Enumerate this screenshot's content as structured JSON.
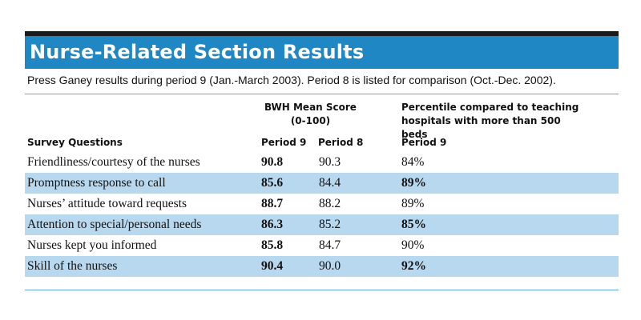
{
  "title": "Nurse-Related Section Results",
  "subtitle": "Press Ganey results during period 9 (Jan.-March 2003).  Period 8 is listed for comparison (Oct.-Dec. 2002).",
  "headers": {
    "bwh_line1": "BWH Mean Score",
    "bwh_line2": "(0-100)",
    "percentile": "Percentile compared to teaching hospitals with more than 500 beds",
    "survey_questions": "Survey Questions",
    "period9": "Period 9",
    "period8": "Period 8",
    "pct_period9": "Period 9"
  },
  "rows": [
    {
      "question": "Friendliness/courtesy of the nurses",
      "period9": "90.8",
      "period8": "90.3",
      "percentile": "84%"
    },
    {
      "question": "Promptness response to call",
      "period9": "85.6",
      "period8": "84.4",
      "percentile": "89%"
    },
    {
      "question": "Nurses’ attitude toward requests",
      "period9": "88.7",
      "period8": "88.2",
      "percentile": "89%"
    },
    {
      "question": "Attention to special/personal needs",
      "period9": "86.3",
      "period8": "85.2",
      "percentile": "85%"
    },
    {
      "question": "Nurses kept you informed",
      "period9": "85.8",
      "period8": "84.7",
      "percentile": "90%"
    },
    {
      "question": "Skill of the nurses",
      "period9": "90.4",
      "period8": "90.0",
      "percentile": "92%"
    }
  ],
  "colors": {
    "banner": "#1f87c4",
    "row_shade": "#b8d8ef",
    "rule": "#62a9d8"
  }
}
